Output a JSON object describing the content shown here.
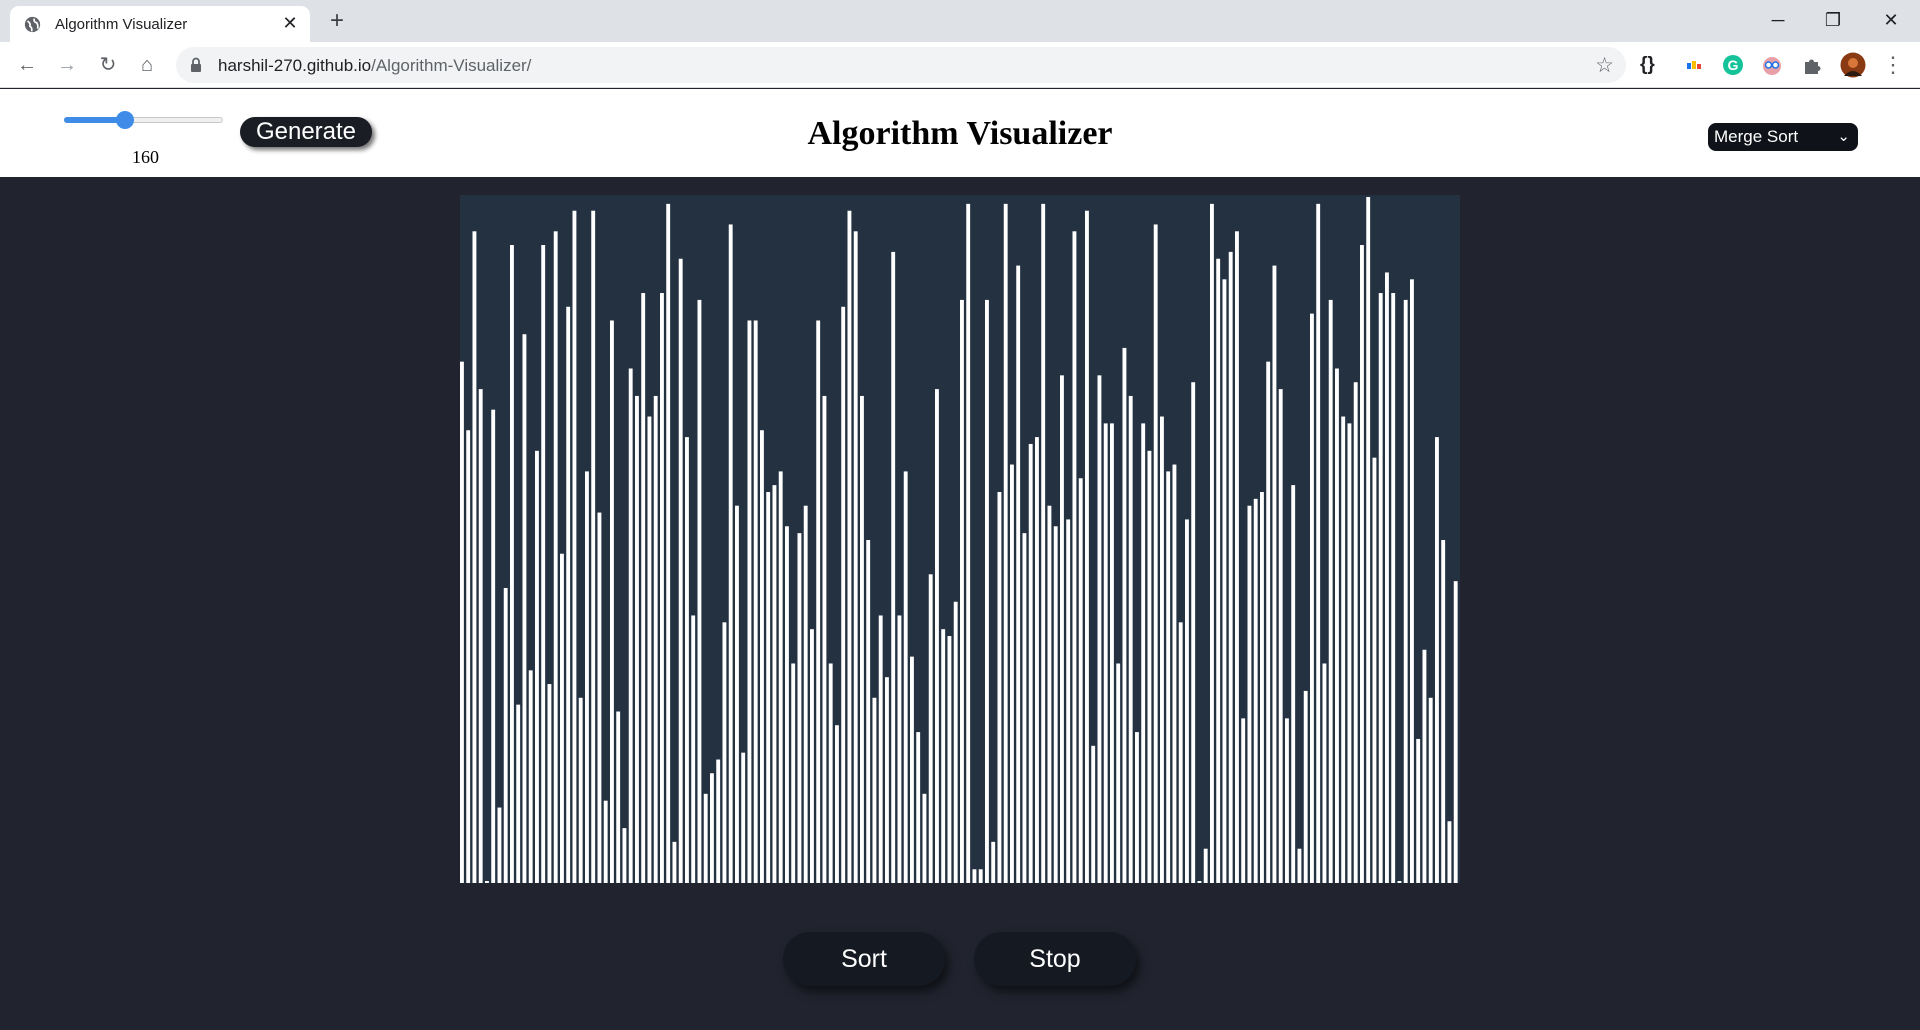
{
  "browser": {
    "tab_title": "Algorithm Visualizer",
    "url_host": "harshil-270.github.io",
    "url_path": "/Algorithm-Visualizer/",
    "extensions": [
      "code-braces-icon",
      "palette-extension-icon",
      "grammarly-icon",
      "owl-extension-icon",
      "puzzle-icon",
      "profile-avatar"
    ]
  },
  "controls": {
    "array_size": 160,
    "array_size_min": 10,
    "array_size_max": 400,
    "generate_label": "Generate",
    "sort_label": "Sort",
    "stop_label": "Stop"
  },
  "header": {
    "title": "Algorithm Visualizer"
  },
  "algorithm_select": {
    "selected": "Merge Sort"
  },
  "array": {
    "bar_color": "#ffffff",
    "background": "#233140",
    "max_value": 100,
    "values": [
      76,
      66,
      95,
      72,
      0,
      69,
      11,
      43,
      93,
      26,
      80,
      31,
      63,
      93,
      29,
      95,
      48,
      84,
      98,
      27,
      60,
      98,
      54,
      12,
      82,
      25,
      8,
      75,
      71,
      86,
      68,
      71,
      86,
      99,
      6,
      91,
      65,
      39,
      85,
      13,
      16,
      18,
      38,
      96,
      55,
      19,
      82,
      82,
      66,
      57,
      58,
      60,
      52,
      32,
      51,
      55,
      37,
      82,
      71,
      32,
      23,
      84,
      98,
      95,
      71,
      50,
      27,
      39,
      30,
      92,
      39,
      60,
      33,
      22,
      13,
      45,
      72,
      37,
      36,
      41,
      85,
      99,
      2,
      2,
      85,
      6,
      57,
      99,
      61,
      90,
      51,
      64,
      65,
      99,
      55,
      52,
      74,
      53,
      95,
      59,
      98,
      20,
      74,
      67,
      67,
      32,
      78,
      71,
      22,
      67,
      63,
      96,
      68,
      60,
      61,
      38,
      53,
      73,
      0,
      5,
      99,
      91,
      88,
      92,
      95,
      24,
      55,
      56,
      57,
      76,
      90,
      72,
      24,
      58,
      5,
      28,
      83,
      99,
      32,
      85,
      75,
      68,
      67,
      73,
      93,
      100,
      62,
      86,
      89,
      86,
      0,
      85,
      88,
      21,
      34,
      27,
      65,
      50,
      9,
      44
    ]
  }
}
